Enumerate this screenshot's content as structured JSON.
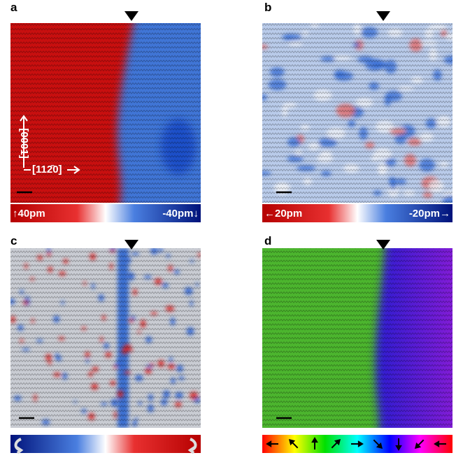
{
  "panels": [
    {
      "label": "a",
      "colorbar": {
        "left": "↑40pm",
        "right": "-40pm↓"
      },
      "annotations": [
        "[0001]",
        "[112̄0]"
      ]
    },
    {
      "label": "b",
      "colorbar": {
        "left": "←20pm",
        "right": "-20pm→"
      }
    },
    {
      "label": "c"
    },
    {
      "label": "d"
    }
  ]
}
